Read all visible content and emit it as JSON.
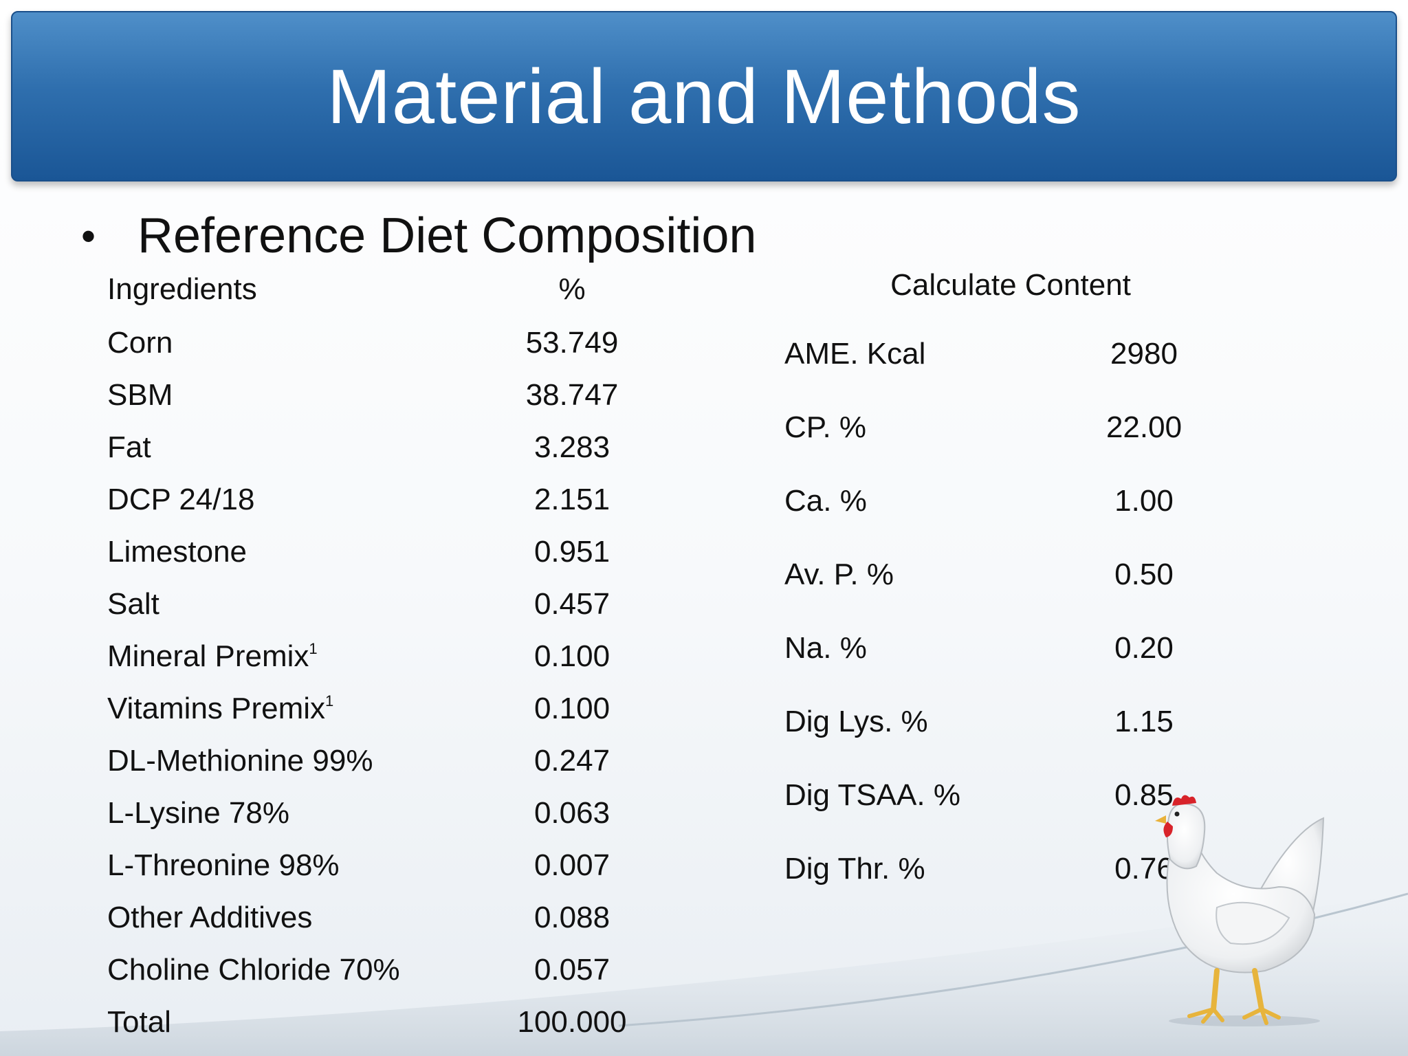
{
  "slide": {
    "title": "Material and Methods",
    "bullet_heading": "Reference Diet Composition"
  },
  "ingredients_table": {
    "header_ingredient": "Ingredients",
    "header_percent": "%",
    "rows": [
      {
        "name": "Corn",
        "value": "53.749"
      },
      {
        "name": "SBM",
        "value": "38.747"
      },
      {
        "name": "Fat",
        "value": "3.283"
      },
      {
        "name": "DCP 24/18",
        "value": "2.151"
      },
      {
        "name": "Limestone",
        "value": "0.951"
      },
      {
        "name": "Salt",
        "value": "0.457"
      },
      {
        "name": "Mineral Premix",
        "sup": "1",
        "value": "0.100"
      },
      {
        "name": "Vitamins Premix",
        "sup": "1",
        "value": "0.100"
      },
      {
        "name": "DL-Methionine 99%",
        "value": "0.247"
      },
      {
        "name": "L-Lysine 78%",
        "value": "0.063"
      },
      {
        "name": "L-Threonine 98%",
        "value": "0.007"
      },
      {
        "name": "Other Additives",
        "value": "0.088"
      },
      {
        "name": "Choline Chloride 70%",
        "value": "0.057"
      },
      {
        "name": "Total",
        "value": "100.000"
      }
    ]
  },
  "content_table": {
    "header": "Calculate Content",
    "rows": [
      {
        "name": "AME. Kcal",
        "value": "2980"
      },
      {
        "name": "CP. %",
        "value": "22.00"
      },
      {
        "name": "Ca. %",
        "value": "1.00"
      },
      {
        "name": "Av. P. %",
        "value": "0.50"
      },
      {
        "name": "Na. %",
        "value": "0.20"
      },
      {
        "name": "Dig Lys. %",
        "value": "1.15"
      },
      {
        "name": "Dig TSAA. %",
        "value": "0.85"
      },
      {
        "name": "Dig Thr. %",
        "value": "0.76"
      }
    ]
  },
  "decor": {
    "image": "hen-illustration",
    "title_bar_color": "#2f6fae"
  }
}
